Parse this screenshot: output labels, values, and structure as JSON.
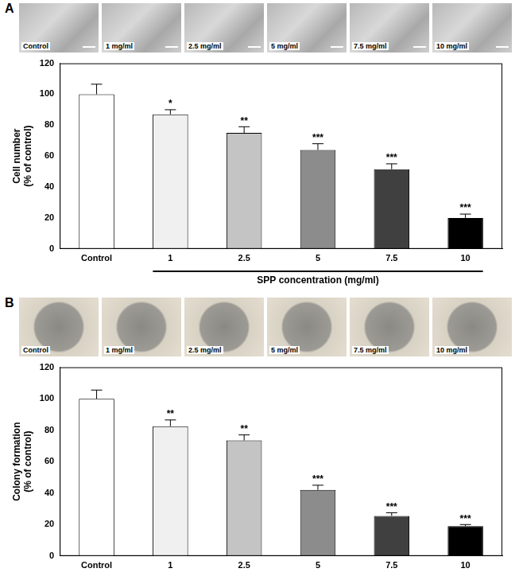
{
  "chart_data": [
    {
      "panel": "A",
      "type": "bar",
      "images": [
        "Control",
        "1 mg/ml",
        "2.5 mg/ml",
        "5 mg/ml",
        "7.5 mg/ml",
        "10 mg/ml"
      ],
      "categories": [
        "Control",
        "1",
        "2.5",
        "5",
        "7.5",
        "10"
      ],
      "values": [
        100,
        87,
        75,
        64,
        51.5,
        20
      ],
      "error": [
        6.5,
        3,
        4,
        4,
        3.5,
        2.5
      ],
      "annotations": [
        null,
        "*",
        "**",
        "***",
        "***",
        "***"
      ],
      "colors": [
        "#ffffff",
        "#f0f0f0",
        "#c4c4c4",
        "#8c8c8c",
        "#404040",
        "#000000"
      ],
      "y_label": [
        "Cell number",
        "(% of control)"
      ],
      "x_label": "SPP concentration (mg/ml)",
      "ylim": [
        0,
        120
      ],
      "yticks": [
        0,
        20,
        40,
        60,
        80,
        100,
        120
      ],
      "grid": false
    },
    {
      "panel": "B",
      "type": "bar",
      "images": [
        "Control",
        "1 mg/ml",
        "2.5 mg/ml",
        "5 mg/ml",
        "7.5 mg/ml",
        "10 mg/ml"
      ],
      "categories": [
        "Control",
        "1",
        "2.5",
        "5",
        "7.5",
        "10"
      ],
      "values": [
        100,
        82.5,
        73.5,
        42,
        25.5,
        19
      ],
      "error": [
        5.5,
        4,
        3.5,
        3,
        2,
        1
      ],
      "annotations": [
        null,
        "**",
        "**",
        "***",
        "***",
        "***"
      ],
      "colors": [
        "#ffffff",
        "#f0f0f0",
        "#c4c4c4",
        "#8c8c8c",
        "#404040",
        "#000000"
      ],
      "y_label": [
        "Colony formation",
        "(% of control)"
      ],
      "ylim": [
        0,
        120
      ],
      "yticks": [
        0,
        20,
        40,
        60,
        80,
        100,
        120
      ],
      "grid": false
    }
  ]
}
